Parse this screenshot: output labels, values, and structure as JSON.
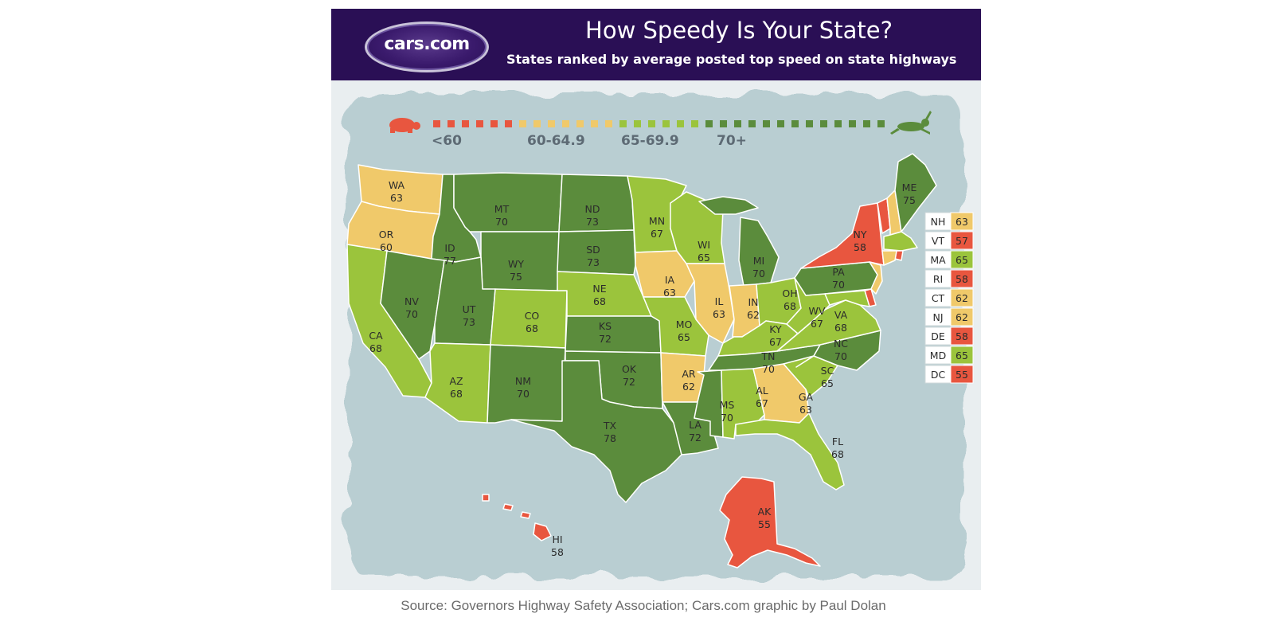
{
  "header": {
    "logo": "cars.com",
    "title": "How Speedy Is Your State?",
    "subtitle": "States ranked by average posted top speed on state highways"
  },
  "legend": {
    "items": [
      {
        "label": "<60",
        "color": "#e8563f"
      },
      {
        "label": "60-64.9",
        "color": "#f0c96a"
      },
      {
        "label": "65-69.9",
        "color": "#9bc43c"
      },
      {
        "label": "70+",
        "color": "#5b8c3c"
      }
    ],
    "slow_icon": "turtle-icon",
    "fast_icon": "rabbit-icon"
  },
  "colors": {
    "lt60": "#e8563f",
    "60_64": "#f0c96a",
    "65_69": "#9bc43c",
    "70plus": "#5b8c3c",
    "header": "#2a0f55",
    "ocean": "#b9ced2",
    "border": "#ffffff"
  },
  "states": {
    "WA": {
      "abbr": "WA",
      "value": "63"
    },
    "OR": {
      "abbr": "OR",
      "value": "60"
    },
    "CA": {
      "abbr": "CA",
      "value": "68"
    },
    "ID": {
      "abbr": "ID",
      "value": "77"
    },
    "NV": {
      "abbr": "NV",
      "value": "70"
    },
    "MT": {
      "abbr": "MT",
      "value": "70"
    },
    "WY": {
      "abbr": "WY",
      "value": "75"
    },
    "UT": {
      "abbr": "UT",
      "value": "73"
    },
    "AZ": {
      "abbr": "AZ",
      "value": "68"
    },
    "CO": {
      "abbr": "CO",
      "value": "68"
    },
    "NM": {
      "abbr": "NM",
      "value": "70"
    },
    "ND": {
      "abbr": "ND",
      "value": "73"
    },
    "SD": {
      "abbr": "SD",
      "value": "73"
    },
    "NE": {
      "abbr": "NE",
      "value": "68"
    },
    "KS": {
      "abbr": "KS",
      "value": "72"
    },
    "OK": {
      "abbr": "OK",
      "value": "72"
    },
    "TX": {
      "abbr": "TX",
      "value": "78"
    },
    "MN": {
      "abbr": "MN",
      "value": "67"
    },
    "IA": {
      "abbr": "IA",
      "value": "63"
    },
    "MO": {
      "abbr": "MO",
      "value": "65"
    },
    "AR": {
      "abbr": "AR",
      "value": "62"
    },
    "LA": {
      "abbr": "LA",
      "value": "72"
    },
    "WI": {
      "abbr": "WI",
      "value": "65"
    },
    "IL": {
      "abbr": "IL",
      "value": "63"
    },
    "MS": {
      "abbr": "MS",
      "value": "70"
    },
    "MI": {
      "abbr": "MI",
      "value": "70"
    },
    "IN": {
      "abbr": "IN",
      "value": "62"
    },
    "KY": {
      "abbr": "KY",
      "value": "67"
    },
    "TN": {
      "abbr": "TN",
      "value": "70"
    },
    "AL": {
      "abbr": "AL",
      "value": "67"
    },
    "OH": {
      "abbr": "OH",
      "value": "68"
    },
    "WV": {
      "abbr": "WV",
      "value": "67"
    },
    "GA": {
      "abbr": "GA",
      "value": "63"
    },
    "FL": {
      "abbr": "FL",
      "value": "68"
    },
    "SC": {
      "abbr": "SC",
      "value": "65"
    },
    "NC": {
      "abbr": "NC",
      "value": "70"
    },
    "VA": {
      "abbr": "VA",
      "value": "68"
    },
    "PA": {
      "abbr": "PA",
      "value": "70"
    },
    "NY": {
      "abbr": "NY",
      "value": "58"
    },
    "ME": {
      "abbr": "ME",
      "value": "75"
    },
    "AK": {
      "abbr": "AK",
      "value": "55"
    },
    "HI": {
      "abbr": "HI",
      "value": "58"
    }
  },
  "northeast_table": [
    {
      "abbr": "NH",
      "value": "63",
      "color": "#f0c96a"
    },
    {
      "abbr": "VT",
      "value": "57",
      "color": "#e8563f"
    },
    {
      "abbr": "MA",
      "value": "65",
      "color": "#9bc43c"
    },
    {
      "abbr": "RI",
      "value": "58",
      "color": "#e8563f"
    },
    {
      "abbr": "CT",
      "value": "62",
      "color": "#f0c96a"
    },
    {
      "abbr": "NJ",
      "value": "62",
      "color": "#f0c96a"
    },
    {
      "abbr": "DE",
      "value": "58",
      "color": "#e8563f"
    },
    {
      "abbr": "MD",
      "value": "65",
      "color": "#9bc43c"
    },
    {
      "abbr": "DC",
      "value": "55",
      "color": "#e8563f"
    }
  ],
  "source": "Source: Governors Highway Safety Association; Cars.com graphic by Paul Dolan"
}
